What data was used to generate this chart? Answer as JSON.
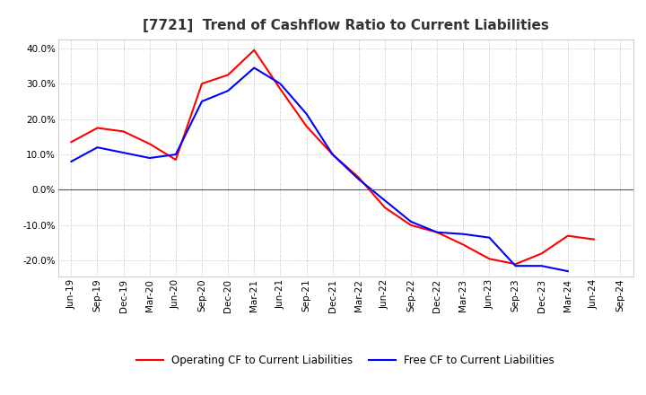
{
  "title": "[7721]  Trend of Cashflow Ratio to Current Liabilities",
  "x_labels": [
    "Jun-19",
    "Sep-19",
    "Dec-19",
    "Mar-20",
    "Jun-20",
    "Sep-20",
    "Dec-20",
    "Mar-21",
    "Jun-21",
    "Sep-21",
    "Dec-21",
    "Mar-22",
    "Jun-22",
    "Sep-22",
    "Dec-22",
    "Mar-23",
    "Jun-23",
    "Sep-23",
    "Dec-23",
    "Mar-24",
    "Jun-24",
    "Sep-24"
  ],
  "operating_cf": [
    0.135,
    0.175,
    0.165,
    0.13,
    0.085,
    0.3,
    0.325,
    0.395,
    0.285,
    0.18,
    0.1,
    0.035,
    -0.05,
    -0.1,
    -0.12,
    -0.155,
    -0.195,
    -0.21,
    -0.18,
    -0.13,
    -0.14,
    null
  ],
  "free_cf": [
    0.08,
    0.12,
    0.105,
    0.09,
    0.1,
    0.25,
    0.28,
    0.345,
    0.3,
    0.215,
    0.1,
    0.03,
    -0.03,
    -0.09,
    -0.12,
    -0.125,
    -0.135,
    -0.215,
    -0.215,
    -0.23,
    null,
    null
  ],
  "operating_color": "#ff0000",
  "free_color": "#0000ff",
  "ylim": [
    -0.245,
    0.425
  ],
  "yticks": [
    -0.2,
    -0.1,
    0.0,
    0.1,
    0.2,
    0.3,
    0.4
  ],
  "background_color": "#ffffff",
  "plot_bg_color": "#ffffff",
  "grid_color": "#aaaaaa",
  "zero_line_color": "#555555",
  "title_fontsize": 11,
  "tick_fontsize": 7.5,
  "legend_fontsize": 8.5
}
